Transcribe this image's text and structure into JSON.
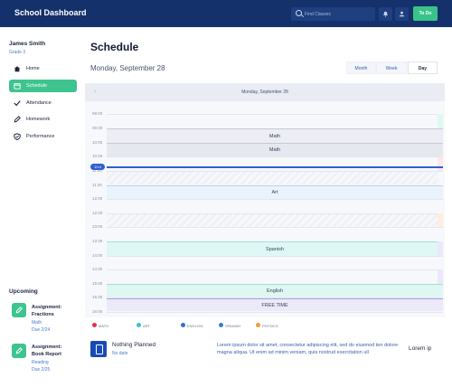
{
  "header": {
    "app_title": "School Dashboard",
    "search_placeholder": "Find Classes",
    "todo_label": "To Do",
    "icons": [
      "search-icon",
      "bell-icon",
      "user-icon"
    ]
  },
  "user": {
    "name": "James Smith",
    "grade": "Grade 3"
  },
  "nav": {
    "items": [
      {
        "label": "Home",
        "icon": "home-icon",
        "active": false
      },
      {
        "label": "Schedule",
        "icon": "calendar-icon",
        "active": true
      },
      {
        "label": "Attendance",
        "icon": "check-icon",
        "active": false
      },
      {
        "label": "Homework",
        "icon": "pencil-icon",
        "active": false
      },
      {
        "label": "Performance",
        "icon": "shield-icon",
        "active": false
      }
    ]
  },
  "upcoming": {
    "title": "Upcoming",
    "tasks": [
      {
        "title_line1": "Assignment:",
        "title_line2": "Fractions",
        "subject": "Math",
        "due": "Due 2/24"
      },
      {
        "title_line1": "Assignment:",
        "title_line2": "Book Report",
        "subject": "Reading",
        "due": "Due 2/25"
      }
    ]
  },
  "main": {
    "title": "Schedule",
    "date": "Monday, September 28",
    "views": [
      "Month",
      "Week",
      "Day"
    ],
    "active_view": "Day",
    "calendar_header": "Monday, September 28",
    "prev_symbol": "‹",
    "current_time": "10:4"
  },
  "calendar": {
    "hours": [
      "09:00",
      "09:30",
      "10:00",
      "10:30",
      "11:00",
      "11:30",
      "12:00",
      "12:30",
      "13:00",
      "13:30",
      "14:00",
      "14:30",
      "15:00",
      "15:30",
      "16:00"
    ],
    "events": [
      {
        "label": "Math",
        "subject": "math"
      },
      {
        "label": "Math",
        "subject": "math"
      },
      {
        "label": "Art",
        "subject": "art"
      },
      {
        "label": "Spanish",
        "subject": "spanish"
      },
      {
        "label": "English",
        "subject": "english"
      },
      {
        "label": "FREE TIME",
        "subject": "free"
      }
    ]
  },
  "legend": [
    {
      "label": "MATH",
      "color": "#e0344b"
    },
    {
      "label": "ART",
      "color": "#3fc1c9"
    },
    {
      "label": "ENGLISH",
      "color": "#2f6fd6"
    },
    {
      "label": "SPANISH",
      "color": "#3a7bd5"
    },
    {
      "label": "PHYSICS",
      "color": "#f39a3a"
    }
  ],
  "bottom": {
    "nothing_planned": "Nothing Planned",
    "no_date": "No date",
    "lorem": "Lorem ipsum dolor sit amet, consectetur adipiscing elit, sed do eiusmod ten dolore magna aliqua. Ut enim ad minim veniam, quis nostrud exercitation ull",
    "lorem_short": "Lorem ip"
  },
  "colors": {
    "primary": "#14316b",
    "accent": "#3ec48f",
    "link": "#4a7bd0"
  }
}
